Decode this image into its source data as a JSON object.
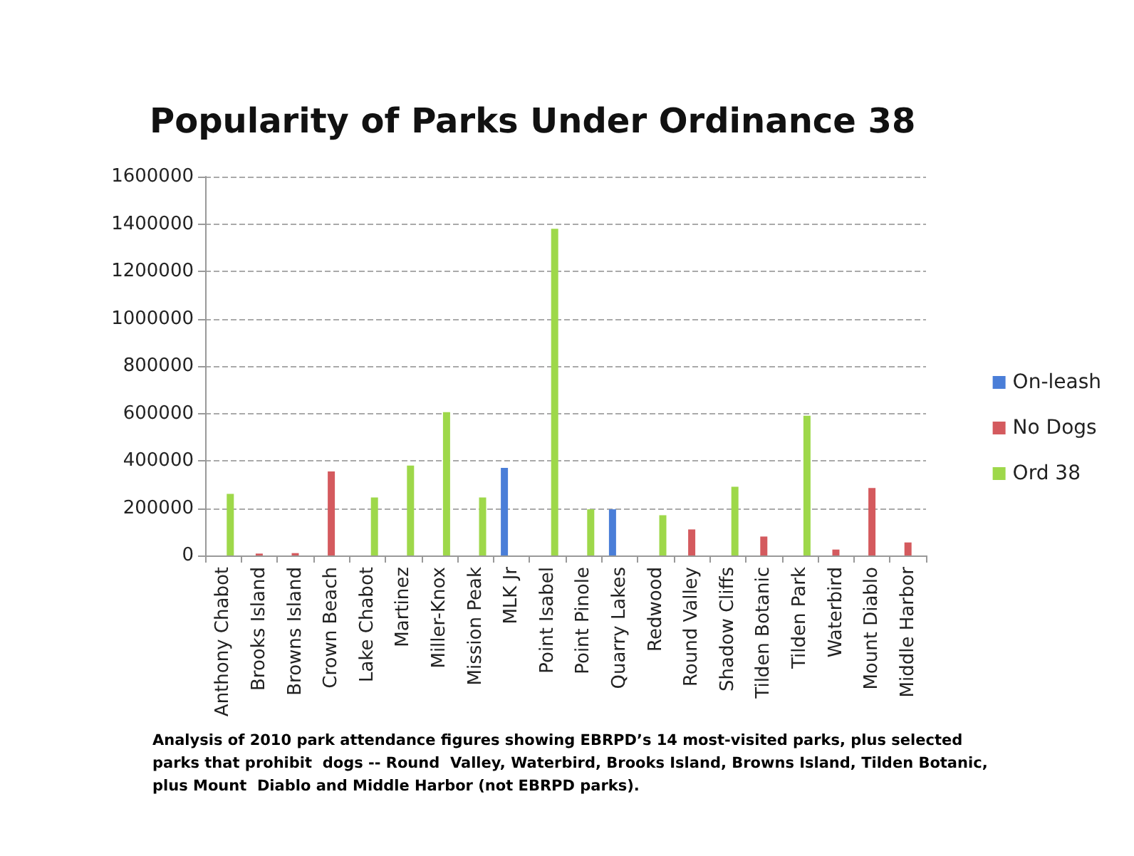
{
  "chart_data": {
    "type": "bar",
    "title": "Popularity of Parks Under Ordinance 38",
    "categories": [
      "Anthony Chabot",
      "Brooks Island",
      "Browns Island",
      "Crown Beach",
      "Lake Chabot",
      "Martinez",
      "Miller-Knox",
      "Mission Peak",
      "MLK Jr",
      "Point Isabel",
      "Point Pinole",
      "Quarry Lakes",
      "Redwood",
      "Round Valley",
      "Shadow Cliffs",
      "Tilden Botanic",
      "Tilden Park",
      "Waterbird",
      "Mount Diablo",
      "Middle Harbor"
    ],
    "series": [
      {
        "name": "On-leash",
        "color": "#4a7ed8",
        "values": [
          null,
          null,
          null,
          null,
          null,
          null,
          null,
          null,
          370000,
          null,
          null,
          195000,
          null,
          null,
          null,
          null,
          null,
          null,
          null,
          null
        ]
      },
      {
        "name": "No Dogs",
        "color": "#d45a5e",
        "values": [
          null,
          8000,
          10000,
          355000,
          null,
          null,
          null,
          null,
          null,
          null,
          null,
          null,
          null,
          110000,
          null,
          80000,
          null,
          25000,
          285000,
          55000
        ]
      },
      {
        "name": "Ord 38",
        "color": "#9ed84a",
        "values": [
          260000,
          null,
          null,
          null,
          245000,
          380000,
          605000,
          245000,
          null,
          1380000,
          195000,
          null,
          170000,
          null,
          290000,
          null,
          590000,
          null,
          null,
          null
        ]
      }
    ],
    "ylim": [
      0,
      1600000
    ],
    "yticks": [
      0,
      200000,
      400000,
      600000,
      800000,
      1000000,
      1200000,
      1400000,
      1600000
    ],
    "grid": "y",
    "legend": "right",
    "annotations": [
      "Analysis of 2010 park attendance figures showing EBRPD’s 14 most-visited parks, plus selected parks that prohibit  dogs -- Round  Valley, Waterbird, Brooks Island, Browns Island, Tilden Botanic, plus Mount  Diablo and Middle Harbor (not EBRPD parks)."
    ]
  }
}
